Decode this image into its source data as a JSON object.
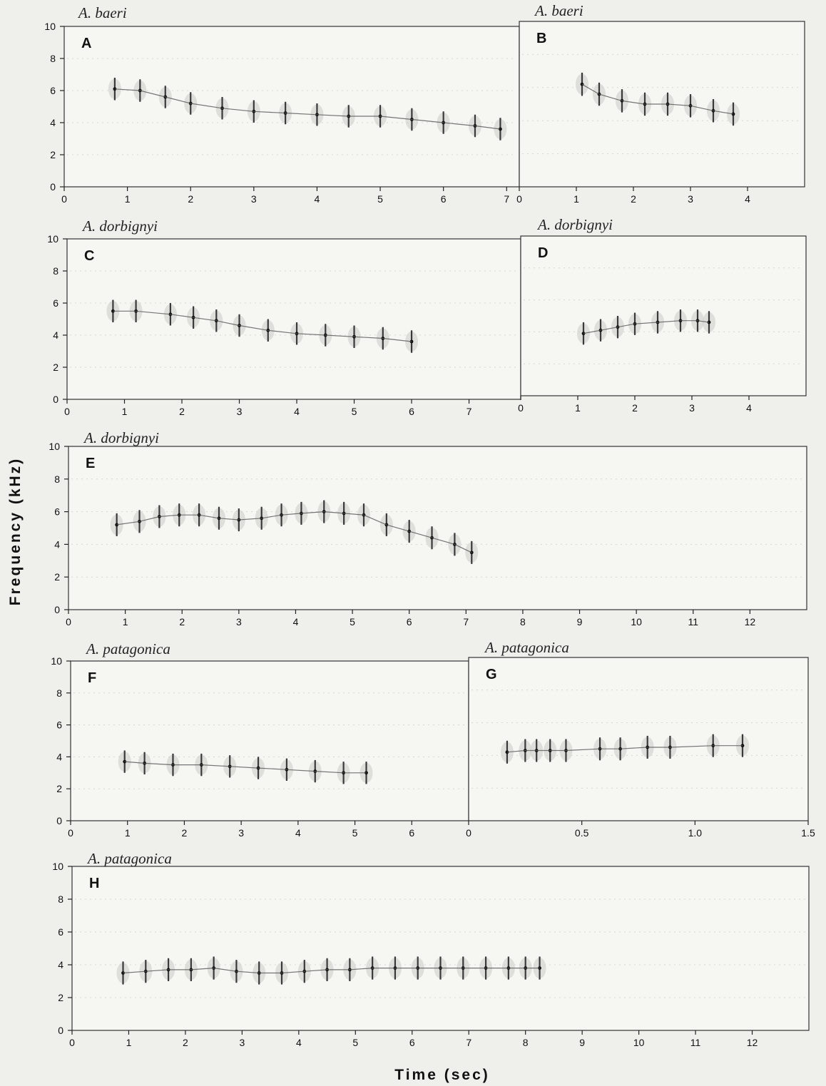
{
  "axis_titles": {
    "y": "Frequency   (kHz)",
    "x": "Time   (sec)"
  },
  "chart_data": [
    {
      "type": "scatter",
      "id": "A",
      "panel_label": "A",
      "title": "A. baeri",
      "xlim": [
        0,
        7.2
      ],
      "ylim": [
        0,
        10
      ],
      "x_ticks": [
        "0",
        "1",
        "2",
        "3",
        "4",
        "5",
        "6",
        "7"
      ],
      "y_ticks": [
        "0",
        "2",
        "4",
        "6",
        "8",
        "10"
      ],
      "series": [
        {
          "values": [
            [
              0.8,
              6.1
            ],
            [
              1.2,
              6.0
            ],
            [
              1.6,
              5.6
            ],
            [
              2.0,
              5.2
            ],
            [
              2.5,
              4.9
            ],
            [
              3.0,
              4.7
            ],
            [
              3.5,
              4.6
            ],
            [
              4.0,
              4.5
            ],
            [
              4.5,
              4.4
            ],
            [
              5.0,
              4.4
            ],
            [
              5.5,
              4.2
            ],
            [
              6.0,
              4.0
            ],
            [
              6.5,
              3.8
            ],
            [
              6.9,
              3.6
            ]
          ]
        }
      ]
    },
    {
      "type": "scatter",
      "id": "B",
      "panel_label": "B",
      "title": "A. baeri",
      "xlim": [
        0,
        5
      ],
      "ylim": [
        0,
        10
      ],
      "x_ticks": [
        "0",
        "1",
        "2",
        "3",
        "4"
      ],
      "y_ticks": [],
      "series": [
        {
          "values": [
            [
              1.1,
              6.2
            ],
            [
              1.4,
              5.6
            ],
            [
              1.8,
              5.2
            ],
            [
              2.2,
              5.0
            ],
            [
              2.6,
              5.0
            ],
            [
              3.0,
              4.9
            ],
            [
              3.4,
              4.6
            ],
            [
              3.75,
              4.4
            ]
          ]
        }
      ]
    },
    {
      "type": "scatter",
      "id": "C",
      "panel_label": "C",
      "title": "A. dorbignyi",
      "xlim": [
        0,
        7.9
      ],
      "ylim": [
        0,
        10
      ],
      "x_ticks": [
        "0",
        "1",
        "2",
        "3",
        "4",
        "5",
        "6",
        "7"
      ],
      "y_ticks": [
        "0",
        "2",
        "4",
        "6",
        "8",
        "10"
      ],
      "series": [
        {
          "values": [
            [
              0.8,
              5.5
            ],
            [
              1.2,
              5.5
            ],
            [
              1.8,
              5.3
            ],
            [
              2.2,
              5.1
            ],
            [
              2.6,
              4.9
            ],
            [
              3.0,
              4.6
            ],
            [
              3.5,
              4.3
            ],
            [
              4.0,
              4.1
            ],
            [
              4.5,
              4.0
            ],
            [
              5.0,
              3.9
            ],
            [
              5.5,
              3.8
            ],
            [
              6.0,
              3.6
            ]
          ]
        }
      ]
    },
    {
      "type": "scatter",
      "id": "D",
      "panel_label": "D",
      "title": "A. dorbignyi",
      "xlim": [
        0,
        5
      ],
      "ylim": [
        0,
        10
      ],
      "x_ticks": [
        "0",
        "1",
        "2",
        "3",
        "4"
      ],
      "y_ticks": [],
      "series": [
        {
          "values": [
            [
              1.1,
              3.9
            ],
            [
              1.4,
              4.1
            ],
            [
              1.7,
              4.3
            ],
            [
              2.0,
              4.5
            ],
            [
              2.4,
              4.6
            ],
            [
              2.8,
              4.7
            ],
            [
              3.1,
              4.7
            ],
            [
              3.3,
              4.6
            ]
          ]
        }
      ]
    },
    {
      "type": "scatter",
      "id": "E",
      "panel_label": "E",
      "title": "A. dorbignyi",
      "xlim": [
        0,
        13
      ],
      "ylim": [
        0,
        10
      ],
      "x_ticks": [
        "0",
        "1",
        "2",
        "3",
        "4",
        "5",
        "6",
        "7",
        "8",
        "9",
        "10",
        "11",
        "12"
      ],
      "y_ticks": [
        "0",
        "2",
        "4",
        "6",
        "8",
        "10"
      ],
      "series": [
        {
          "values": [
            [
              0.85,
              5.2
            ],
            [
              1.25,
              5.4
            ],
            [
              1.6,
              5.7
            ],
            [
              1.95,
              5.8
            ],
            [
              2.3,
              5.8
            ],
            [
              2.65,
              5.6
            ],
            [
              3.0,
              5.5
            ],
            [
              3.4,
              5.6
            ],
            [
              3.75,
              5.8
            ],
            [
              4.1,
              5.9
            ],
            [
              4.5,
              6.0
            ],
            [
              4.85,
              5.9
            ],
            [
              5.2,
              5.8
            ],
            [
              5.6,
              5.2
            ],
            [
              6.0,
              4.8
            ],
            [
              6.4,
              4.4
            ],
            [
              6.8,
              4.0
            ],
            [
              7.1,
              3.5
            ]
          ]
        }
      ]
    },
    {
      "type": "scatter",
      "id": "F",
      "panel_label": "F",
      "title": "A. patagonica",
      "xlim": [
        0,
        7
      ],
      "ylim": [
        0,
        10
      ],
      "x_ticks": [
        "0",
        "1",
        "2",
        "3",
        "4",
        "5",
        "6"
      ],
      "y_ticks": [
        "0",
        "2",
        "4",
        "6",
        "8",
        "10"
      ],
      "series": [
        {
          "values": [
            [
              0.95,
              3.7
            ],
            [
              1.3,
              3.6
            ],
            [
              1.8,
              3.5
            ],
            [
              2.3,
              3.5
            ],
            [
              2.8,
              3.4
            ],
            [
              3.3,
              3.3
            ],
            [
              3.8,
              3.2
            ],
            [
              4.3,
              3.1
            ],
            [
              4.8,
              3.0
            ],
            [
              5.2,
              3.0
            ]
          ]
        }
      ]
    },
    {
      "type": "scatter",
      "id": "G",
      "panel_label": "G",
      "title": "A. patagonica",
      "xlim": [
        0,
        1.5
      ],
      "ylim": [
        0,
        10
      ],
      "x_ticks": [
        "0",
        "0.5",
        "1.0",
        "1.5"
      ],
      "y_ticks": [],
      "series": [
        {
          "values": [
            [
              0.17,
              4.2
            ],
            [
              0.25,
              4.3
            ],
            [
              0.3,
              4.3
            ],
            [
              0.36,
              4.3
            ],
            [
              0.43,
              4.3
            ],
            [
              0.58,
              4.4
            ],
            [
              0.67,
              4.4
            ],
            [
              0.79,
              4.5
            ],
            [
              0.89,
              4.5
            ],
            [
              1.08,
              4.6
            ],
            [
              1.21,
              4.6
            ]
          ]
        }
      ]
    },
    {
      "type": "scatter",
      "id": "H",
      "panel_label": "H",
      "title": "A. patagonica",
      "xlim": [
        0,
        13
      ],
      "ylim": [
        0,
        10
      ],
      "x_ticks": [
        "0",
        "1",
        "2",
        "3",
        "4",
        "5",
        "6",
        "7",
        "8",
        "9",
        "10",
        "11",
        "12"
      ],
      "y_ticks": [
        "0",
        "2",
        "4",
        "6",
        "8",
        "10"
      ],
      "series": [
        {
          "values": [
            [
              0.9,
              3.5
            ],
            [
              1.3,
              3.6
            ],
            [
              1.7,
              3.7
            ],
            [
              2.1,
              3.7
            ],
            [
              2.5,
              3.8
            ],
            [
              2.9,
              3.6
            ],
            [
              3.3,
              3.5
            ],
            [
              3.7,
              3.5
            ],
            [
              4.1,
              3.6
            ],
            [
              4.5,
              3.7
            ],
            [
              4.9,
              3.7
            ],
            [
              5.3,
              3.8
            ],
            [
              5.7,
              3.8
            ],
            [
              6.1,
              3.8
            ],
            [
              6.5,
              3.8
            ],
            [
              6.9,
              3.8
            ],
            [
              7.3,
              3.8
            ],
            [
              7.7,
              3.8
            ],
            [
              8.0,
              3.8
            ],
            [
              8.25,
              3.8
            ]
          ]
        }
      ]
    }
  ]
}
